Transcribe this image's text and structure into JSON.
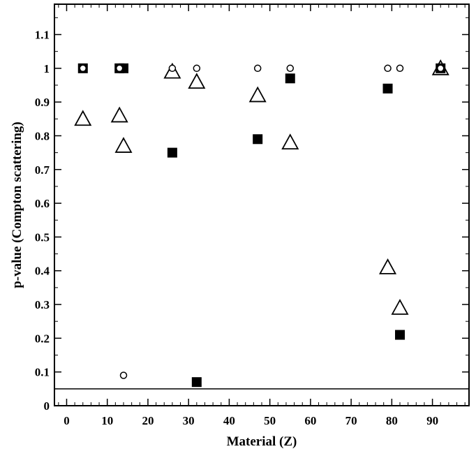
{
  "chart_data": {
    "type": "scatter",
    "title": "",
    "xlabel": "Material (Z)",
    "ylabel": "p-value (Compton scattering)",
    "xlim": [
      -3,
      99
    ],
    "ylim": [
      0,
      1.19
    ],
    "x_ticks": [
      0,
      10,
      20,
      30,
      40,
      50,
      60,
      70,
      80,
      90
    ],
    "x_tick_labels": [
      "0",
      "10",
      "20",
      "30",
      "40",
      "50",
      "60",
      "70",
      "80",
      "90"
    ],
    "y_ticks": [
      0,
      0.1,
      0.2,
      0.3,
      0.4,
      0.5,
      0.6,
      0.7,
      0.8,
      0.9,
      1,
      1.1
    ],
    "y_tick_labels": [
      "0",
      "0.1",
      "0.2",
      "0.3",
      "0.4",
      "0.5",
      "0.6",
      "0.7",
      "0.8",
      "0.9",
      "1",
      "1.1"
    ],
    "reference_line": {
      "y": 0.05
    },
    "grid": false,
    "series": [
      {
        "marker": "triangle-open",
        "points": [
          {
            "x": 4,
            "y": 0.85
          },
          {
            "x": 13,
            "y": 0.86
          },
          {
            "x": 14,
            "y": 0.77
          },
          {
            "x": 26,
            "y": 0.99
          },
          {
            "x": 32,
            "y": 0.96
          },
          {
            "x": 47,
            "y": 0.92
          },
          {
            "x": 55,
            "y": 0.78
          },
          {
            "x": 79,
            "y": 0.41
          },
          {
            "x": 82,
            "y": 0.29
          },
          {
            "x": 92,
            "y": 1.0
          }
        ]
      },
      {
        "marker": "square-filled",
        "points": [
          {
            "x": 4,
            "y": 1.0
          },
          {
            "x": 13,
            "y": 1.0
          },
          {
            "x": 14,
            "y": 1.0
          },
          {
            "x": 26,
            "y": 0.75
          },
          {
            "x": 32,
            "y": 0.07
          },
          {
            "x": 47,
            "y": 0.79
          },
          {
            "x": 55,
            "y": 0.97
          },
          {
            "x": 79,
            "y": 0.94
          },
          {
            "x": 82,
            "y": 0.21
          },
          {
            "x": 92,
            "y": 1.0
          }
        ]
      },
      {
        "marker": "circle-open",
        "points": [
          {
            "x": 4,
            "y": 1.0
          },
          {
            "x": 13,
            "y": 1.0
          },
          {
            "x": 14,
            "y": 0.09
          },
          {
            "x": 26,
            "y": 1.0
          },
          {
            "x": 32,
            "y": 1.0
          },
          {
            "x": 47,
            "y": 1.0
          },
          {
            "x": 55,
            "y": 1.0
          },
          {
            "x": 79,
            "y": 1.0
          },
          {
            "x": 82,
            "y": 1.0
          },
          {
            "x": 92,
            "y": 1.0
          }
        ]
      }
    ],
    "colors": {
      "marker": "#000000",
      "background": "#ffffff"
    }
  }
}
